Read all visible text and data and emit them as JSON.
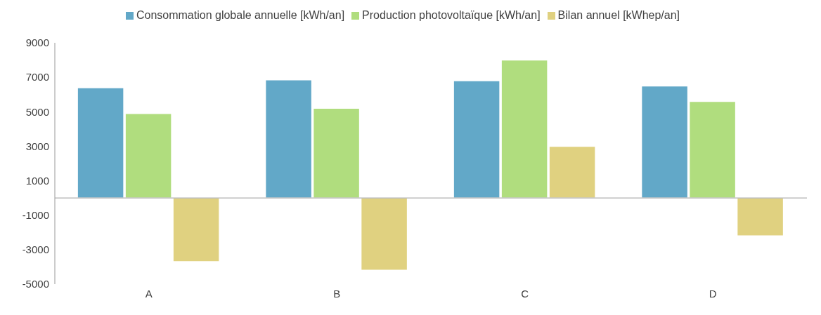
{
  "chart_data": {
    "type": "bar",
    "categories": [
      "A",
      "B",
      "C",
      "D"
    ],
    "series": [
      {
        "name": "Consommation globale annuelle [kWh/an]",
        "color": "#62a8c8",
        "values": [
          6400,
          6850,
          6800,
          6500
        ]
      },
      {
        "name": "Production photovoltaïque [kWh/an]",
        "color": "#b0dd7e",
        "values": [
          4900,
          5200,
          8000,
          5600
        ]
      },
      {
        "name": "Bilan annuel [kWhep/an]",
        "color": "#e0d180",
        "values": [
          -3700,
          -4200,
          3000,
          -2200
        ]
      }
    ],
    "ylim": [
      -5000,
      9000
    ],
    "yticks": [
      -5000,
      -3000,
      -1000,
      1000,
      3000,
      5000,
      7000,
      9000
    ],
    "grid": false,
    "legend": "top"
  }
}
